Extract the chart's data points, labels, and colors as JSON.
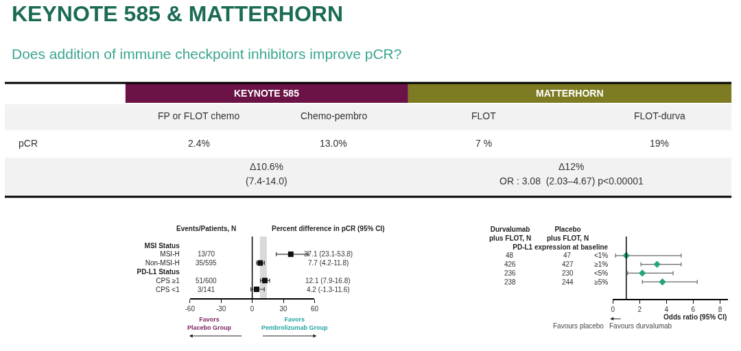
{
  "chart_data": [
    {
      "type": "other",
      "title": "KEYNOTE 585 & MATTERHORN",
      "subtitle": "Does addition of immune checkpoint inhibitors improve pCR?",
      "colors": [
        "#6b1346",
        "#7d7c22"
      ],
      "annotations": [
        "KEYNOTE 585",
        "MATTERHORN",
        "FP or FLOT chemo",
        "Chemo-pembro",
        "FLOT",
        "FLOT-durva",
        "pCR",
        "2.4%",
        "13.0%",
        "7 %",
        "19%",
        "Δ10.6%",
        "(7.4-14.0)",
        "Δ12%",
        "OR : 3.08  (2.03–4.67) p<0.00001"
      ]
    },
    {
      "type": "scatter",
      "orientation": "horizontal",
      "categories": [
        "MSI Status",
        "MSI-H",
        "Non-MSI-H",
        "PD-L1 Status",
        "CPS ≥1",
        "CPS <1"
      ],
      "values": [
        null,
        37.1,
        7.7,
        null,
        12.1,
        4.2
      ],
      "errors": [
        null,
        [
          23.1,
          53.8
        ],
        [
          4.2,
          11.8
        ],
        null,
        [
          7.9,
          16.8
        ],
        [
          -1.3,
          11.6
        ]
      ],
      "value_labels": [
        null,
        "37.1 (23.1-53.8)",
        "7.7 (4.2-11.8)",
        null,
        "12.1 (7.9-16.8)",
        "4.2 (-1.3-11.6)"
      ],
      "color": "#111111",
      "marker": "square",
      "xlim": [
        -60,
        60
      ],
      "xticks": [
        -60,
        -30,
        0,
        30,
        60
      ],
      "grid": false,
      "ref_lines": [
        {
          "axis": "x",
          "value": 0,
          "color": "#000000"
        }
      ],
      "bands": [
        {
          "axis": "x",
          "from": 7.4,
          "to": 14.0,
          "color": "#d9d9d9"
        }
      ],
      "annotations": [
        "Events/Patients, N",
        "Percent difference in pCR (95% CI)",
        "13/70",
        "35/595",
        "51/600",
        "3/141",
        "Favors\nPlacebo Group",
        "Favors\nPembrolizumab Group"
      ]
    },
    {
      "type": "scatter",
      "orientation": "horizontal",
      "categories": [
        "PD-L1 expression at baseline",
        "<1%",
        "≥1%",
        "<5%",
        "≥5%"
      ],
      "values": [
        null,
        1.0,
        3.3,
        2.2,
        3.7
      ],
      "errors": [
        null,
        [
          0.2,
          5.1
        ],
        [
          2.1,
          5.1
        ],
        [
          1.1,
          4.5
        ],
        [
          2.2,
          6.3
        ]
      ],
      "color": "#26a37e",
      "marker": "diamond",
      "xlim": [
        0,
        8.6
      ],
      "xticks": [
        0,
        2,
        4,
        6,
        8
      ],
      "grid": false,
      "xlabel": "Odds ratio (95% CI)",
      "ref_lines": [
        {
          "axis": "x",
          "value": 1,
          "color": "#000000"
        }
      ],
      "annotations": [
        "Durvalumab\nplus FLOT, N",
        "Placebo\nplus FLOT, N",
        "48",
        "426",
        "236",
        "238",
        "47",
        "427",
        "230",
        "244",
        "Favours placebo",
        "Favours durvalumab"
      ]
    }
  ]
}
